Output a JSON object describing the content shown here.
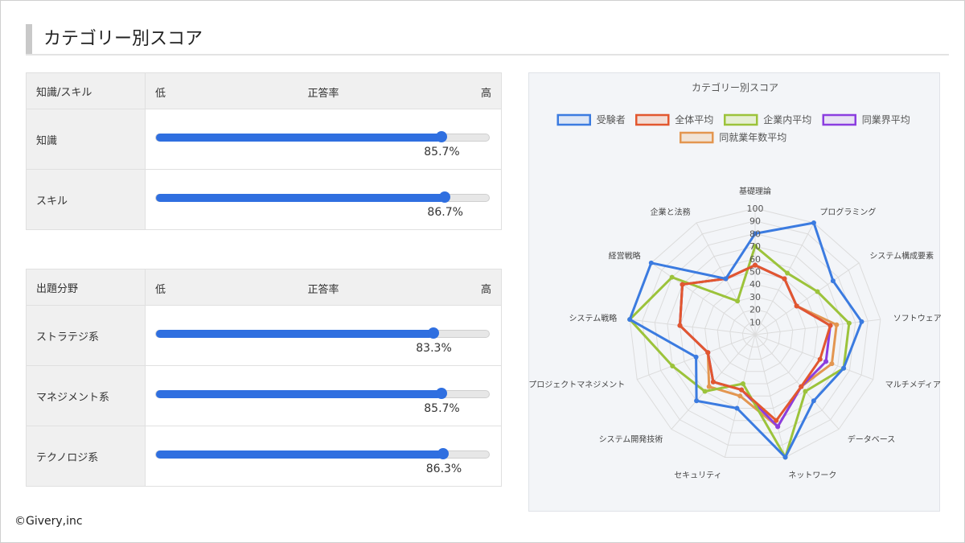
{
  "page": {
    "title": "カテゴリー別スコア",
    "copyright": "©Givery,inc"
  },
  "colors": {
    "bar": "#2f6fe0"
  },
  "table1": {
    "header": {
      "name": "知識/スキル",
      "low": "低",
      "mid": "正答率",
      "high": "高"
    },
    "rows": [
      {
        "label": "知識",
        "value": 85.7,
        "text": "85.7%"
      },
      {
        "label": "スキル",
        "value": 86.7,
        "text": "86.7%"
      }
    ]
  },
  "table2": {
    "header": {
      "name": "出題分野",
      "low": "低",
      "mid": "正答率",
      "high": "高"
    },
    "rows": [
      {
        "label": "ストラテジ系",
        "value": 83.3,
        "text": "83.3%"
      },
      {
        "label": "マネジメント系",
        "value": 85.7,
        "text": "85.7%"
      },
      {
        "label": "テクノロジ系",
        "value": 86.3,
        "text": "86.3%"
      }
    ]
  },
  "chart_data": {
    "type": "radar",
    "title": "カテゴリー別スコア",
    "categories": [
      "基礎理論",
      "プログラミング",
      "システム構成要素",
      "ソフトウェア",
      "マルチメディア",
      "データベース",
      "ネットワーク",
      "セキュリティ",
      "システム開発技術",
      "プロジェクトマネジメント",
      "システム戦略",
      "経営戦略",
      "企業と法務"
    ],
    "rmin": 0,
    "rmax": 100,
    "ticks": [
      10,
      20,
      30,
      40,
      50,
      60,
      70,
      80,
      90,
      100
    ],
    "legend_position": "top",
    "series": [
      {
        "name": "受験者",
        "color": "#3b7be0",
        "fill": "#dde6f5",
        "values": [
          80,
          100,
          75,
          85,
          75,
          70,
          100,
          60,
          70,
          50,
          100,
          100,
          50
        ]
      },
      {
        "name": "全体平均",
        "color": "#e2572f",
        "fill": "#f2ddd6",
        "values": [
          55,
          50,
          40,
          60,
          55,
          55,
          70,
          45,
          50,
          40,
          60,
          70,
          50
        ]
      },
      {
        "name": "企業内平均",
        "color": "#9cc33b",
        "fill": "#e6efd3",
        "values": [
          70,
          55,
          60,
          75,
          75,
          60,
          100,
          40,
          60,
          70,
          100,
          80,
          30
        ]
      },
      {
        "name": "同業界平均",
        "color": "#8b3ee0",
        "fill": "#e8e2f3",
        "values": [
          55,
          50,
          40,
          60,
          60,
          55,
          75,
          45,
          50,
          40,
          60,
          70,
          50
        ]
      },
      {
        "name": "同就業年数平均",
        "color": "#e39650",
        "fill": "#f1e3d6",
        "values": [
          55,
          50,
          40,
          65,
          65,
          55,
          75,
          50,
          55,
          40,
          60,
          70,
          50
        ]
      }
    ]
  }
}
